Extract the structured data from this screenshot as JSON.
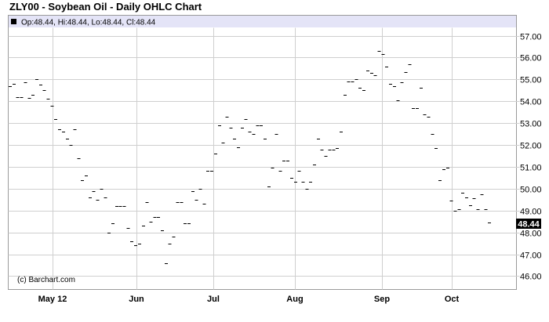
{
  "title": "ZLY00 - Soybean Oil - Daily OHLC Chart",
  "legend": {
    "marker_color": "#000000",
    "text": "Op:48.44, Hi:48.44, Lo:48.44, Cl:48.44"
  },
  "copyright": "(c) Barchart.com",
  "last_price_label": "48.44",
  "chart_data": {
    "type": "ohlc",
    "title": "ZLY00 - Soybean Oil - Daily OHLC Chart",
    "xlabel": "",
    "ylabel": "",
    "ylim": [
      45.6,
      57.3
    ],
    "yticks": [
      "57.00",
      "56.00",
      "55.00",
      "54.00",
      "53.00",
      "52.00",
      "51.00",
      "50.00",
      "49.00",
      "48.00",
      "47.00",
      "46.00"
    ],
    "xticks": [
      "May 12",
      "Jun",
      "Jul",
      "Aug",
      "Sep",
      "Oct"
    ],
    "grid": true,
    "legend_position": "top-left",
    "bar_color": "#000000",
    "last_value": 48.44,
    "series": [
      {
        "values": [
          54.7,
          54.8,
          54.2,
          54.2,
          54.85,
          54.15,
          54.3,
          55.0,
          54.75,
          54.5,
          54.1,
          53.8,
          53.2,
          52.7,
          52.6,
          52.3,
          52.0,
          52.7,
          51.4,
          50.4,
          50.6,
          49.6,
          49.9,
          49.5,
          50.0,
          49.6,
          48.0,
          48.4,
          49.2,
          49.2,
          49.2,
          48.2,
          47.6,
          47.4,
          47.5,
          48.3,
          49.4,
          48.5,
          48.7,
          48.7,
          48.1,
          46.6,
          47.5,
          47.8,
          49.4,
          49.4,
          48.4,
          48.4,
          49.9,
          49.5,
          50.0,
          49.3,
          50.8,
          50.8,
          51.6,
          52.9,
          52.1,
          53.3,
          52.8,
          52.3,
          51.9,
          52.8,
          53.2,
          52.6,
          52.5,
          52.9,
          52.9,
          52.3,
          50.1,
          50.95,
          52.5,
          50.8,
          51.3,
          51.3,
          50.5,
          50.3,
          50.8,
          50.3,
          50.0,
          50.3,
          51.1,
          52.3,
          51.8,
          51.5,
          51.8,
          51.8,
          51.85,
          52.6,
          54.3,
          54.9,
          54.9,
          55.0,
          54.6,
          54.5,
          55.4,
          55.3,
          55.2,
          56.3,
          56.15,
          55.6,
          54.8,
          54.7,
          54.05,
          54.85,
          55.35,
          55.7,
          53.7,
          53.7,
          54.6,
          53.4,
          53.3,
          52.5,
          51.85,
          50.4,
          50.9,
          50.95,
          49.45,
          49.0,
          49.05,
          49.8,
          49.6,
          49.25,
          49.55,
          49.05,
          49.75,
          49.05,
          48.44
        ]
      }
    ]
  }
}
